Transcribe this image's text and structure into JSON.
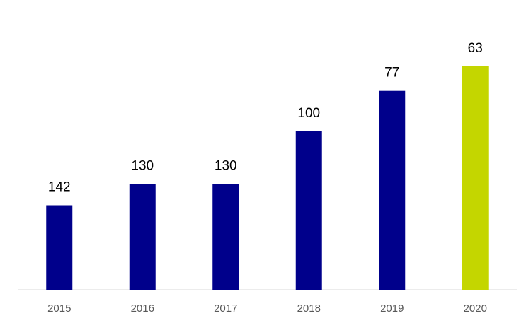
{
  "chart_data": {
    "type": "bar",
    "categories": [
      "2015",
      "2016",
      "2017",
      "2018",
      "2019",
      "2020"
    ],
    "values": [
      142,
      130,
      130,
      100,
      77,
      63
    ],
    "colors": [
      "#00008b",
      "#00008b",
      "#00008b",
      "#00008b",
      "#00008b",
      "#c4d600"
    ],
    "ylim": [
      190,
      0
    ],
    "inverted": true
  }
}
